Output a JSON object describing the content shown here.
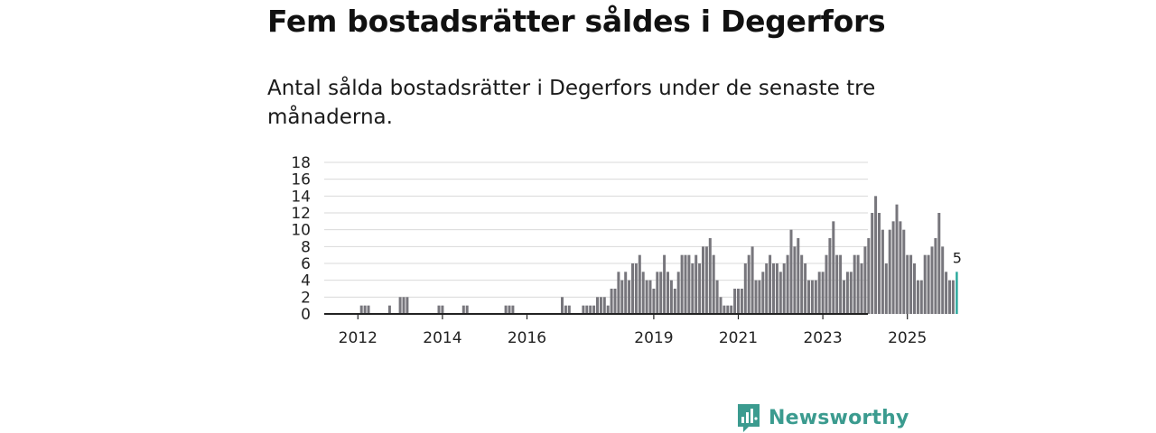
{
  "header": {
    "title": "Fem bostadsrätter såldes i Degerfors",
    "subtitle": "Antal sålda bostadsrätter i Degerfors under de senaste tre månaderna."
  },
  "brand": {
    "name": "Newsworthy",
    "color": "#3b9b8f"
  },
  "colors": {
    "bar": "#77767c",
    "highlight": "#26a69a",
    "grid": "#d9d9d9",
    "axis": "#222222"
  },
  "chart_data": {
    "type": "bar",
    "title": "Antal sålda bostadsrätter i Degerfors",
    "xlabel": "",
    "ylabel": "",
    "ylim": [
      0,
      18
    ],
    "y_ticks": [
      "0",
      "2",
      "4",
      "6",
      "8",
      "10",
      "12",
      "14",
      "16",
      "18"
    ],
    "x_ticks": [
      {
        "label": "2012",
        "index": 2
      },
      {
        "label": "2014",
        "index": 26
      },
      {
        "label": "2016",
        "index": 50
      },
      {
        "label": "2019",
        "index": 86
      },
      {
        "label": "2021",
        "index": 110
      },
      {
        "label": "2023",
        "index": 134
      },
      {
        "label": "2025",
        "index": 158
      }
    ],
    "start": "2011-11",
    "end": "2025-07",
    "values": [
      0,
      0,
      0,
      1,
      1,
      1,
      0,
      0,
      0,
      0,
      0,
      1,
      0,
      0,
      2,
      2,
      2,
      0,
      0,
      0,
      0,
      0,
      0,
      0,
      0,
      1,
      1,
      0,
      0,
      0,
      0,
      0,
      1,
      1,
      0,
      0,
      0,
      0,
      0,
      0,
      0,
      0,
      0,
      0,
      1,
      1,
      1,
      0,
      0,
      0,
      0,
      0,
      0,
      0,
      0,
      0,
      0,
      0,
      0,
      0,
      2,
      1,
      1,
      0,
      0,
      0,
      1,
      1,
      1,
      1,
      2,
      2,
      2,
      1,
      3,
      3,
      5,
      4,
      5,
      4,
      6,
      6,
      7,
      5,
      4,
      4,
      3,
      5,
      5,
      7,
      5,
      4,
      3,
      5,
      7,
      7,
      7,
      6,
      7,
      6,
      8,
      8,
      9,
      7,
      4,
      2,
      1,
      1,
      1,
      3,
      3,
      3,
      6,
      7,
      8,
      4,
      4,
      5,
      6,
      7,
      6,
      6,
      5,
      6,
      7,
      10,
      8,
      9,
      7,
      6,
      4,
      4,
      4,
      5,
      5,
      7,
      9,
      11,
      7,
      7,
      4,
      5,
      5,
      7,
      7,
      6,
      8,
      9,
      12,
      14,
      12,
      10,
      6,
      10,
      11,
      13,
      11,
      10,
      7,
      7,
      6,
      4,
      4,
      7,
      7,
      8,
      9,
      12,
      8,
      5,
      4,
      4,
      5
    ],
    "highlight_label": "5"
  }
}
